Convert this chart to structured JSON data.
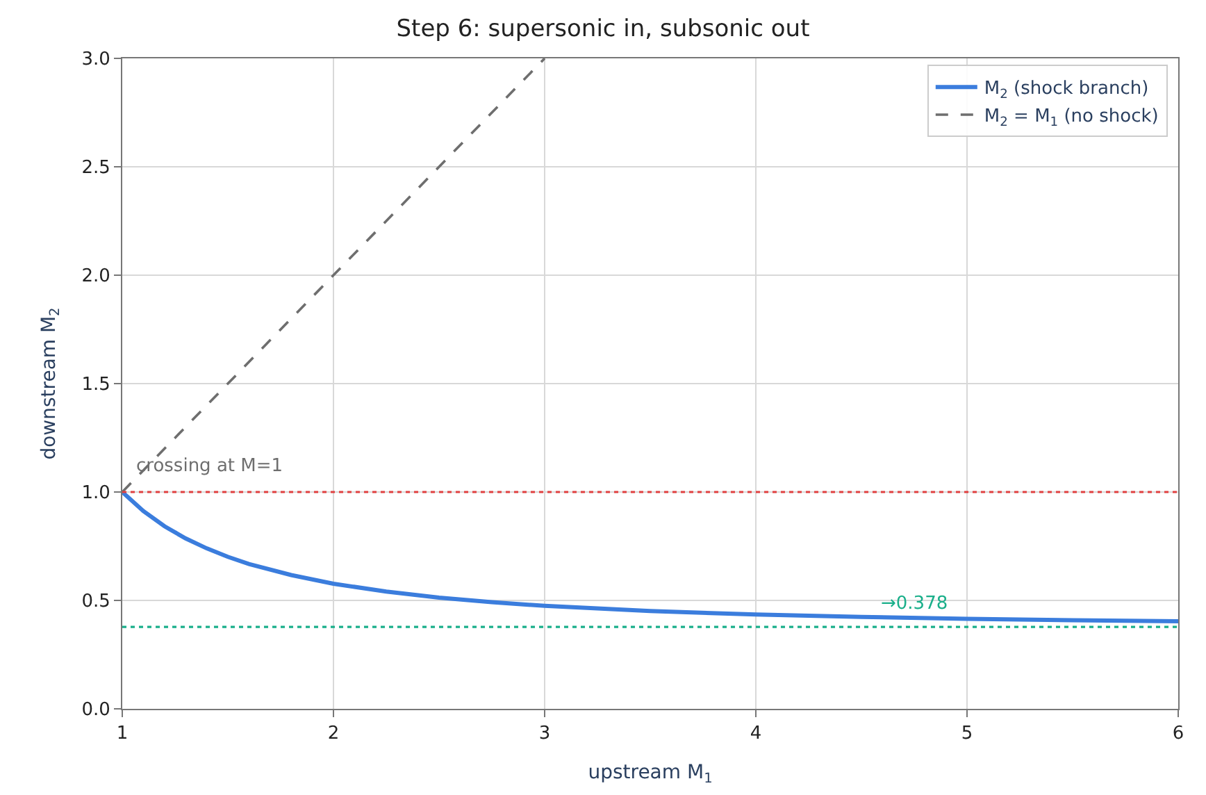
{
  "chart_data": {
    "type": "line",
    "title": "Step 6: supersonic in, subsonic out",
    "xlabel": "upstream M$_{1}$",
    "ylabel": "downstream M$_{2}$",
    "series": [
      {
        "name": "M$_{2}$ (shock branch)",
        "color": "#3b7ddd",
        "line_style": "solid",
        "x": [
          1,
          1.1,
          1.2,
          1.3,
          1.4,
          1.5,
          1.6,
          1.8,
          2,
          2.25,
          2.5,
          2.75,
          3,
          3.5,
          4,
          4.5,
          5,
          5.5,
          6
        ],
        "values": [
          1,
          0.912,
          0.842,
          0.786,
          0.74,
          0.701,
          0.668,
          0.617,
          0.577,
          0.541,
          0.513,
          0.492,
          0.475,
          0.451,
          0.435,
          0.424,
          0.415,
          0.409,
          0.404
        ]
      },
      {
        "name": "M$_{2}$ = M$_{1}$ (no shock)",
        "color": "#6e6e6e",
        "line_style": "dashed",
        "x": [
          1,
          3
        ],
        "values": [
          1,
          3
        ]
      }
    ],
    "ref_lines": [
      {
        "axis": "y",
        "value": 1,
        "color": "#e04040",
        "line_style": "dotted"
      },
      {
        "axis": "y",
        "value": 0.378,
        "color": "#1aaf8a",
        "line_style": "dotted"
      }
    ],
    "annotations": [
      {
        "text": "crossing at M=1",
        "x": 1.05,
        "y": 1.06
      },
      {
        "text": "→0.378",
        "x": 4.58,
        "y": 0.42
      }
    ],
    "xlim": [
      1,
      6
    ],
    "xticks": [
      1,
      2,
      3,
      4,
      5,
      6
    ],
    "ylim": [
      0,
      3
    ],
    "yticks": [
      {
        "value": 0,
        "label": "0.0"
      },
      {
        "value": 0.5,
        "label": "0.5"
      },
      {
        "value": 1,
        "label": "1.0"
      },
      {
        "value": 1.5,
        "label": "1.5"
      },
      {
        "value": 2,
        "label": "2.0"
      },
      {
        "value": 2.5,
        "label": "2.5"
      },
      {
        "value": 3,
        "label": "3.0"
      }
    ],
    "grid": true,
    "legend": "top right",
    "marker": "none"
  }
}
